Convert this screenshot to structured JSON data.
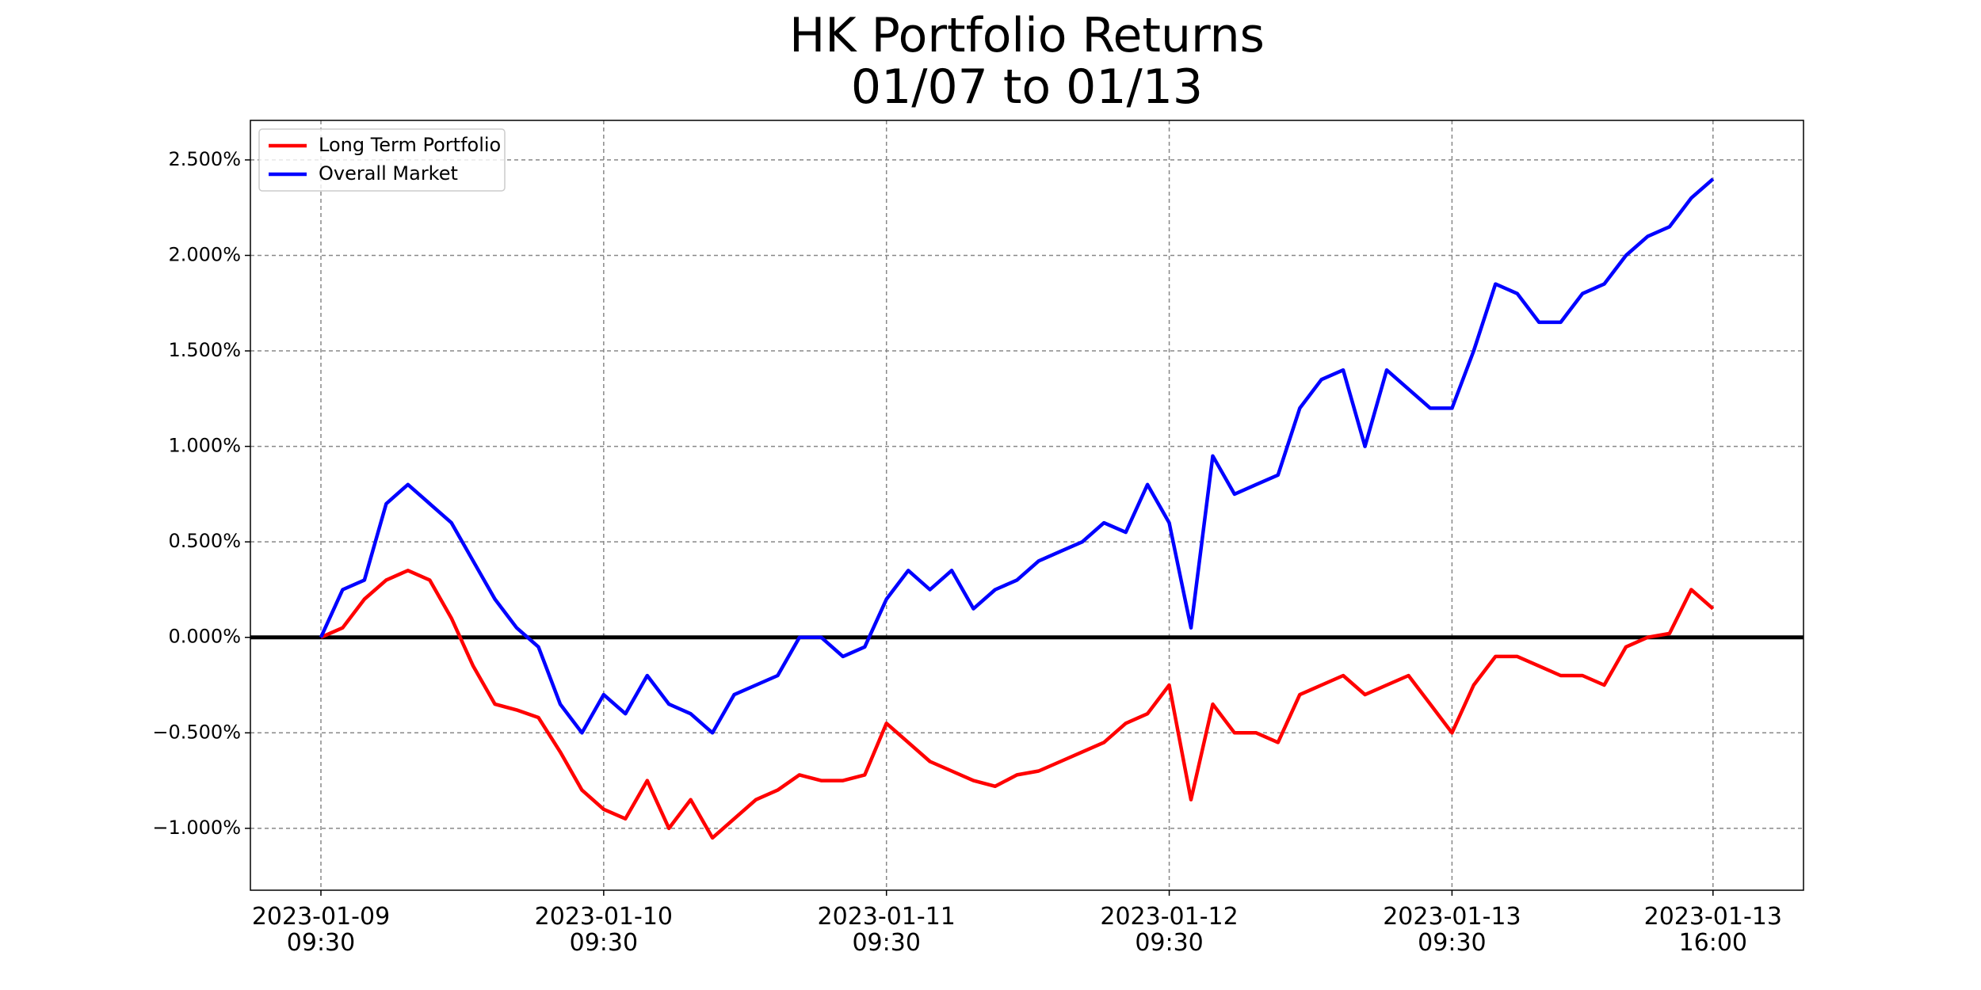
{
  "chart_data": {
    "type": "line",
    "title": "HK Portfolio Returns\n01/07 to 01/13",
    "x": [
      "2023-01-09 09:30",
      "2023-01-09 10:00",
      "2023-01-09 10:30",
      "2023-01-09 11:00",
      "2023-01-09 11:30",
      "2023-01-09 12:00",
      "2023-01-09 13:00",
      "2023-01-09 13:30",
      "2023-01-09 14:00",
      "2023-01-09 14:30",
      "2023-01-09 15:00",
      "2023-01-09 15:30",
      "2023-01-09 16:00",
      "2023-01-10 09:30",
      "2023-01-10 10:00",
      "2023-01-10 10:30",
      "2023-01-10 11:00",
      "2023-01-10 11:30",
      "2023-01-10 12:00",
      "2023-01-10 13:00",
      "2023-01-10 13:30",
      "2023-01-10 14:00",
      "2023-01-10 14:30",
      "2023-01-10 15:00",
      "2023-01-10 15:30",
      "2023-01-10 16:00",
      "2023-01-11 09:30",
      "2023-01-11 10:00",
      "2023-01-11 10:30",
      "2023-01-11 11:00",
      "2023-01-11 11:30",
      "2023-01-11 12:00",
      "2023-01-11 13:00",
      "2023-01-11 13:30",
      "2023-01-11 14:00",
      "2023-01-11 14:30",
      "2023-01-11 15:00",
      "2023-01-11 15:30",
      "2023-01-11 16:00",
      "2023-01-12 09:30",
      "2023-01-12 10:00",
      "2023-01-12 10:30",
      "2023-01-12 11:00",
      "2023-01-12 11:30",
      "2023-01-12 12:00",
      "2023-01-12 13:00",
      "2023-01-12 13:30",
      "2023-01-12 14:00",
      "2023-01-12 14:30",
      "2023-01-12 15:00",
      "2023-01-12 15:30",
      "2023-01-12 16:00",
      "2023-01-13 09:30",
      "2023-01-13 10:00",
      "2023-01-13 10:30",
      "2023-01-13 11:00",
      "2023-01-13 11:30",
      "2023-01-13 12:00",
      "2023-01-13 13:00",
      "2023-01-13 13:30",
      "2023-01-13 14:00",
      "2023-01-13 14:30",
      "2023-01-13 15:00",
      "2023-01-13 15:30",
      "2023-01-13 16:00"
    ],
    "series": [
      {
        "name": "Long Term Portfolio",
        "color": "#ff0000",
        "values": [
          0,
          0.05,
          0.2,
          0.3,
          0.35,
          0.3,
          0.1,
          -0.15,
          -0.35,
          -0.38,
          -0.42,
          -0.6,
          -0.8,
          -0.9,
          -0.95,
          -0.75,
          -1.0,
          -0.85,
          -1.05,
          -0.95,
          -0.85,
          -0.8,
          -0.72,
          -0.75,
          -0.75,
          -0.72,
          -0.45,
          -0.55,
          -0.65,
          -0.7,
          -0.75,
          -0.78,
          -0.72,
          -0.7,
          -0.65,
          -0.6,
          -0.55,
          -0.45,
          -0.4,
          -0.25,
          -0.85,
          -0.35,
          -0.5,
          -0.5,
          -0.55,
          -0.3,
          -0.25,
          -0.2,
          -0.3,
          -0.25,
          -0.2,
          -0.35,
          -0.5,
          -0.25,
          -0.1,
          -0.1,
          -0.15,
          -0.2,
          -0.2,
          -0.25,
          -0.05,
          0,
          0.02,
          0.25,
          0.15
        ]
      },
      {
        "name": "Overall Market",
        "color": "#0000ff",
        "values": [
          0,
          0.25,
          0.3,
          0.7,
          0.8,
          0.7,
          0.6,
          0.4,
          0.2,
          0.05,
          -0.05,
          -0.35,
          -0.5,
          -0.3,
          -0.4,
          -0.2,
          -0.35,
          -0.4,
          -0.5,
          -0.3,
          -0.25,
          -0.2,
          0,
          0,
          -0.1,
          -0.05,
          0.2,
          0.35,
          0.25,
          0.35,
          0.15,
          0.25,
          0.3,
          0.4,
          0.45,
          0.5,
          0.6,
          0.55,
          0.8,
          0.6,
          0.05,
          0.95,
          0.75,
          0.8,
          0.85,
          1.2,
          1.35,
          1.4,
          1.0,
          1.4,
          1.3,
          1.2,
          1.2,
          1.5,
          1.85,
          1.8,
          1.65,
          1.65,
          1.8,
          1.85,
          2.0,
          2.1,
          2.15,
          2.3,
          2.4
        ]
      }
    ],
    "xticks": [
      {
        "value": "2023-01-09 09:30",
        "label": "2023-01-09\n09:30"
      },
      {
        "value": "2023-01-10 09:30",
        "label": "2023-01-10\n09:30"
      },
      {
        "value": "2023-01-11 09:30",
        "label": "2023-01-11\n09:30"
      },
      {
        "value": "2023-01-12 09:30",
        "label": "2023-01-12\n09:30"
      },
      {
        "value": "2023-01-13 09:30",
        "label": "2023-01-13\n09:30"
      },
      {
        "value": "2023-01-13 16:00",
        "label": "2023-01-13\n16:00"
      }
    ],
    "ylim": [
      -1.324,
      2.707
    ],
    "yticks": [
      {
        "value": -1,
        "label": "−1.000%"
      },
      {
        "value": -0.5,
        "label": "−0.500%"
      },
      {
        "value": 0,
        "label": "0.000%"
      },
      {
        "value": 0.5,
        "label": "0.500%"
      },
      {
        "value": 1,
        "label": "1.000%"
      },
      {
        "value": 1.5,
        "label": "1.500%"
      },
      {
        "value": 2,
        "label": "2.000%"
      },
      {
        "value": 2.5,
        "label": "2.500%"
      }
    ],
    "grid": true,
    "zero_line": true,
    "legend": "upper left"
  }
}
